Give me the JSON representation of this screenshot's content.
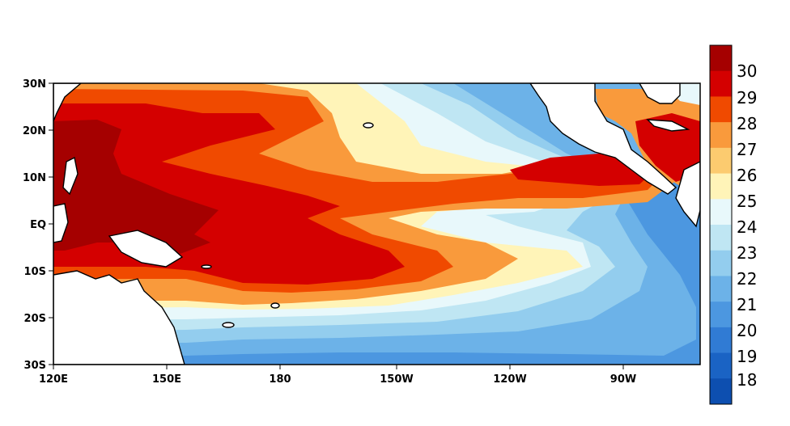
{
  "map": {
    "kind": "sea-surface-temperature",
    "region": "tropical Pacific",
    "lon_range": [
      "120E",
      "70W"
    ],
    "lat_range": [
      "30S",
      "30N"
    ]
  },
  "axes": {
    "y_ticks": [
      "30N",
      "20N",
      "10N",
      "EQ",
      "10S",
      "20S",
      "30S"
    ],
    "x_ticks": [
      "120E",
      "150E",
      "180",
      "150W",
      "120W",
      "90W"
    ]
  },
  "colorbar": {
    "labels": [
      "30",
      "29",
      "28",
      "27",
      "26",
      "25",
      "24",
      "23",
      "22",
      "21",
      "20",
      "19",
      "18"
    ],
    "colors": [
      "#a50000",
      "#d40000",
      "#f04a00",
      "#f99a3c",
      "#fccb6f",
      "#fff4b8",
      "#e8f8fb",
      "#bfe6f3",
      "#93cdee",
      "#6cb2e8",
      "#4c97e0",
      "#307bd4",
      "#1a63c4",
      "#0d4fb0"
    ]
  },
  "palette": {
    "land": "#ffffff",
    "coast": "#000000",
    "warm_pool": "#a50000"
  }
}
